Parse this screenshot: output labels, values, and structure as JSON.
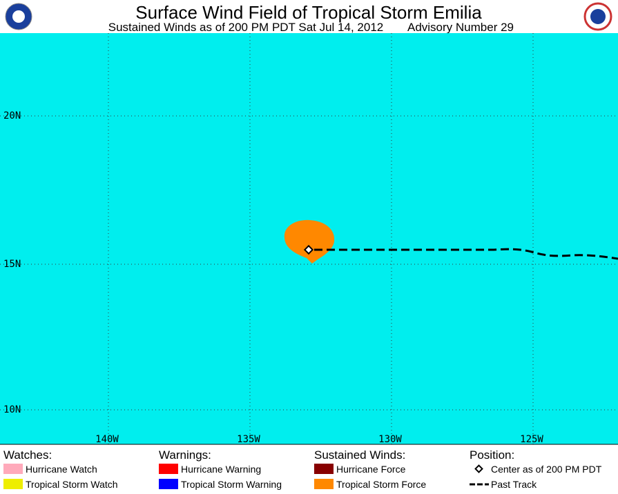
{
  "header": {
    "title": "Surface Wind Field of Tropical Storm Emilia",
    "subtitle": "Sustained Winds as of 200 PM PDT Sat Jul 14, 2012",
    "advisory": "Advisory Number 29"
  },
  "map": {
    "latitude_labels": [
      "20N",
      "15N",
      "10N"
    ],
    "longitude_labels": [
      "140W",
      "135W",
      "130W",
      "125W"
    ]
  },
  "legend": {
    "sections": [
      {
        "title": "Watches:",
        "items": [
          "Hurricane Watch",
          "Tropical Storm Watch"
        ]
      },
      {
        "title": "Warnings:",
        "items": [
          "Hurricane Warning",
          "Tropical Storm Warning"
        ]
      },
      {
        "title": "Sustained Winds:",
        "items": [
          "Hurricane Force",
          "Tropical Storm Force"
        ]
      },
      {
        "title": "Position:",
        "items": [
          "Center as of 200 PM PDT",
          "Past Track"
        ]
      }
    ]
  }
}
